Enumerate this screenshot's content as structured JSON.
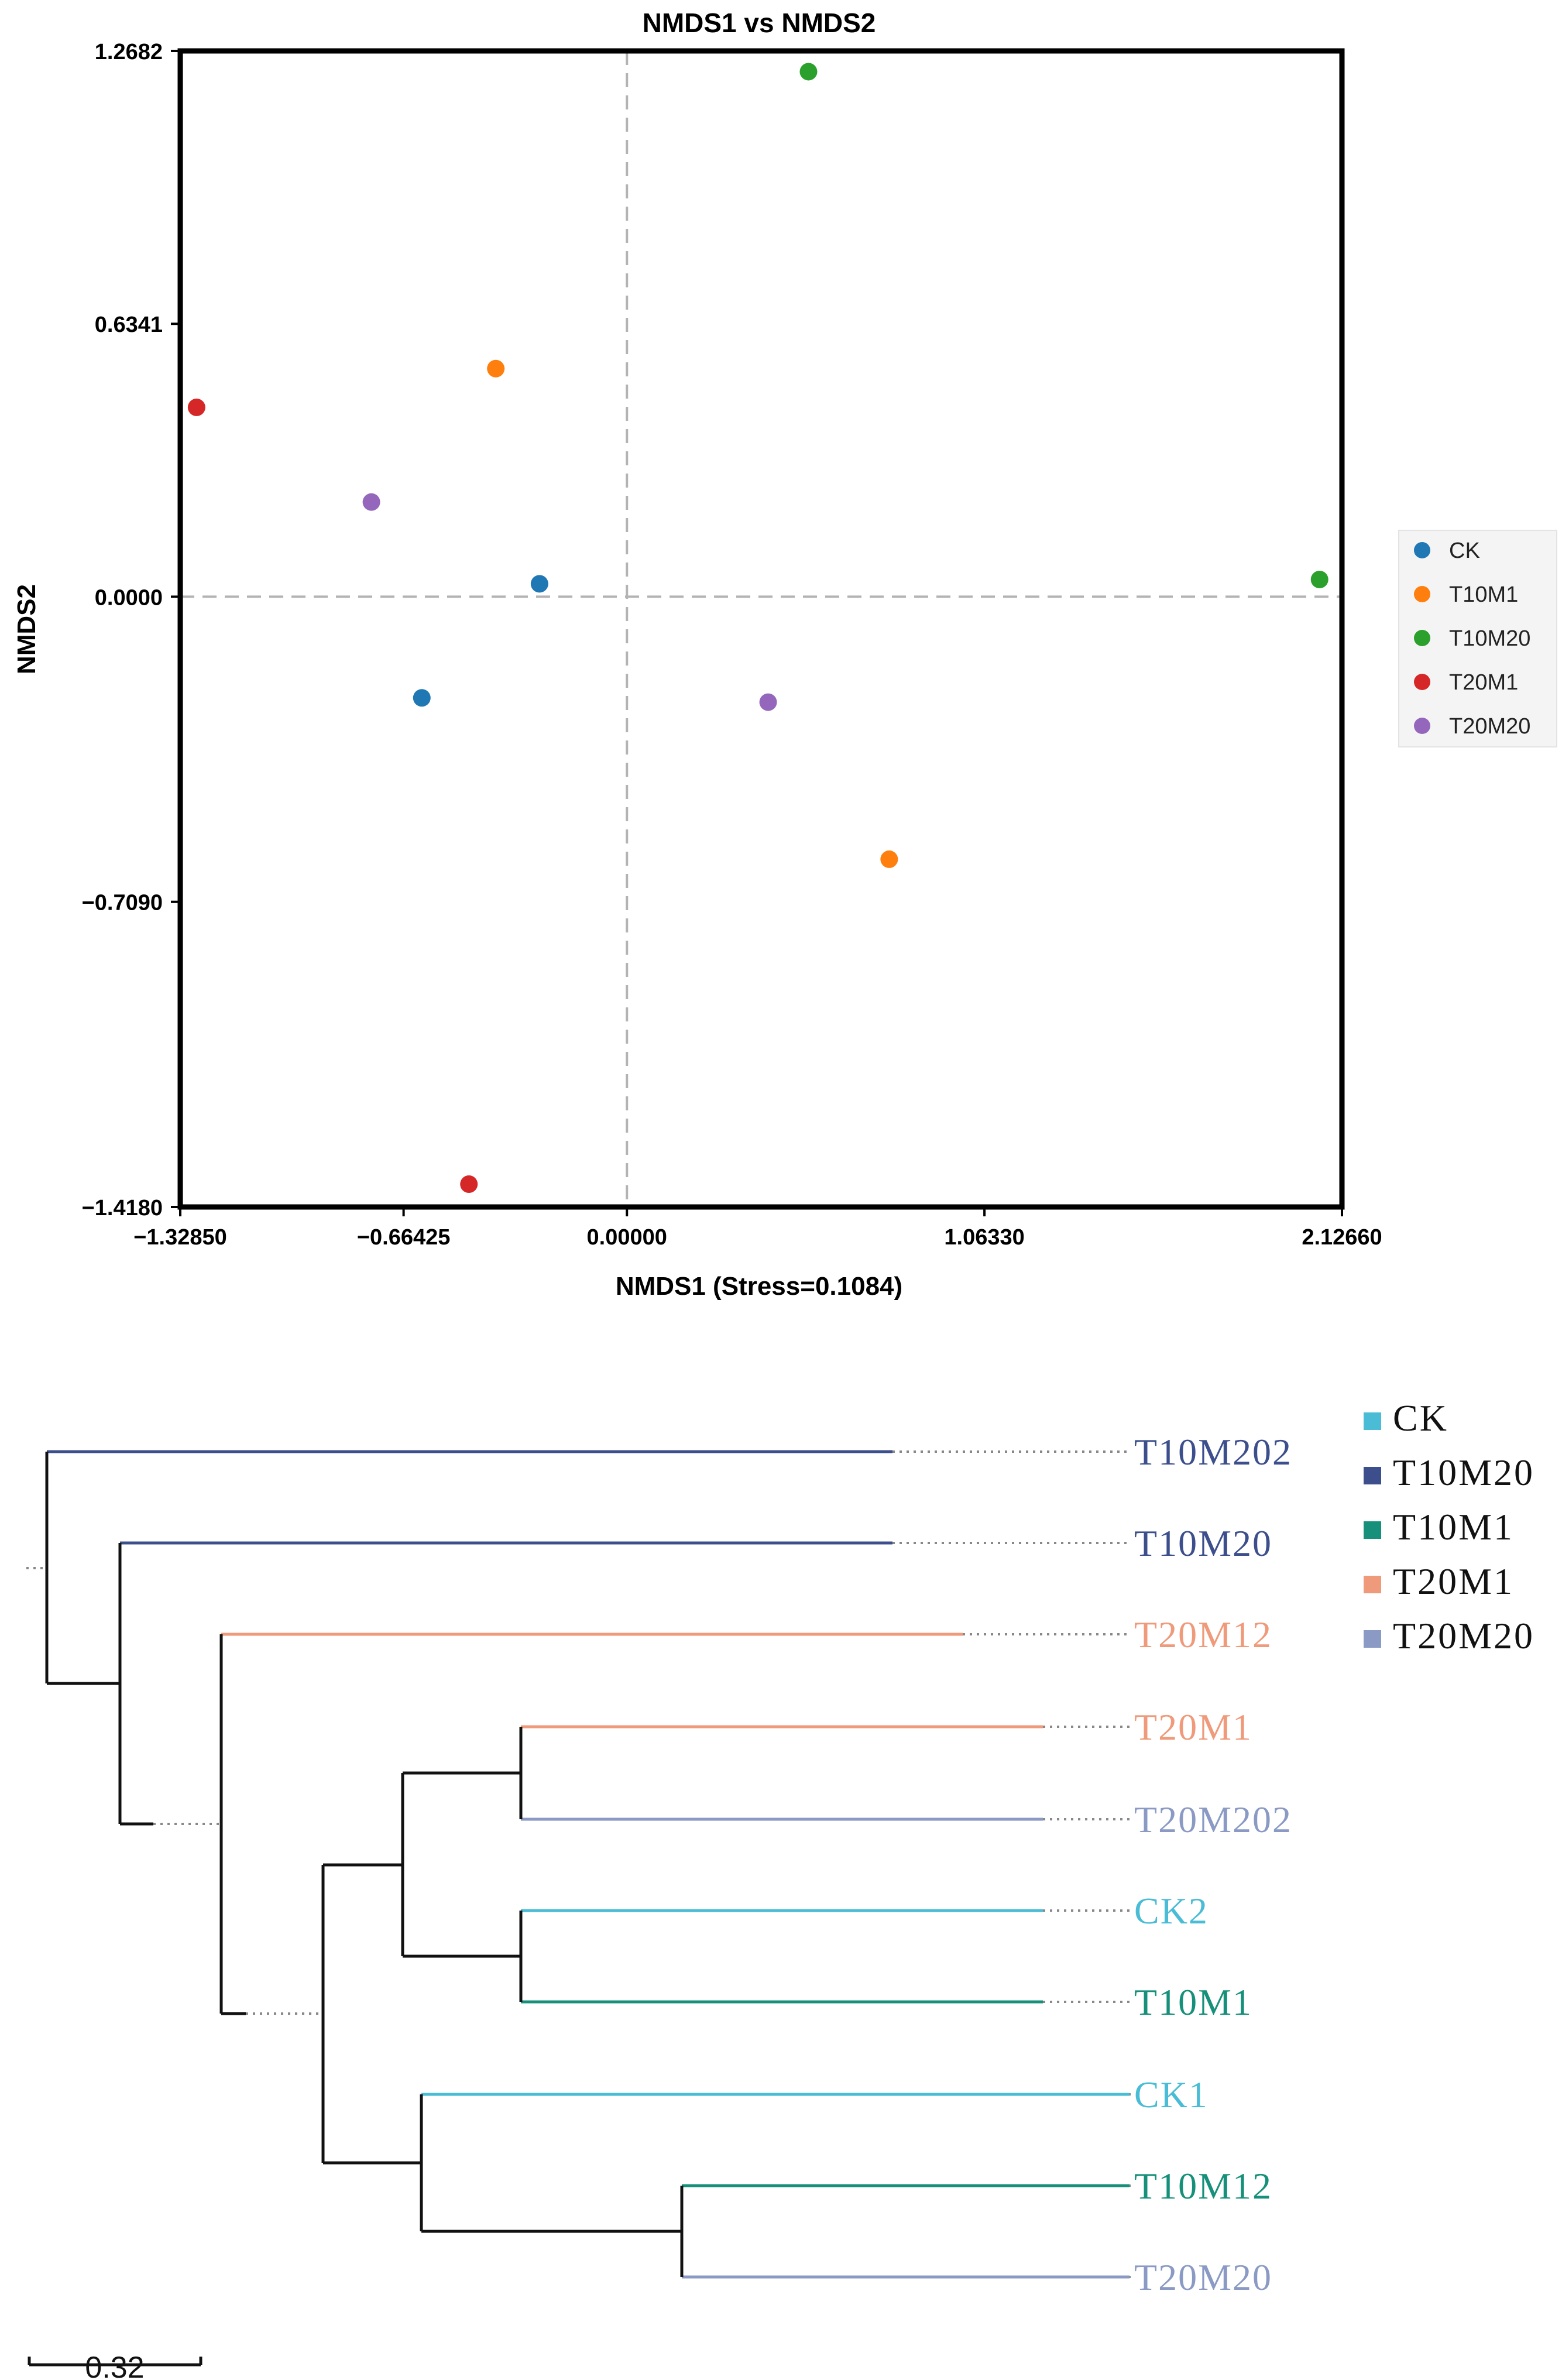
{
  "chart_data": [
    {
      "type": "scatter",
      "title": "NMDS1 vs NMDS2",
      "xlabel": "NMDS1 (Stress=0.1084)",
      "ylabel": "NMDS2",
      "xlim": [
        -1.3285,
        2.1266
      ],
      "ylim": [
        -1.418,
        1.2682
      ],
      "xticks": [
        -1.3285,
        -0.66425,
        0.0,
        1.0633,
        2.1266
      ],
      "xtick_labels": [
        "−1.32850",
        "−0.66425",
        "0.00000",
        "1.06330",
        "2.12660"
      ],
      "yticks": [
        1.2682,
        0.6341,
        0.0,
        -0.709,
        -1.418
      ],
      "ytick_labels": [
        "1.2682",
        "0.6341",
        "0.0000",
        "−0.7090",
        "−1.4180"
      ],
      "reference_lines": {
        "x": 0,
        "y": 0,
        "style": "dashed"
      },
      "legend_position": "right",
      "series": [
        {
          "name": "CK",
          "color": "#1f77b4",
          "points": [
            [
              -0.26,
              0.03
            ],
            [
              -0.61,
              -0.235
            ]
          ]
        },
        {
          "name": "T10M1",
          "color": "#ff7f0e",
          "points": [
            [
              -0.39,
              0.53
            ],
            [
              0.78,
              -0.61
            ]
          ]
        },
        {
          "name": "T10M20",
          "color": "#2ca02c",
          "points": [
            [
              0.54,
              1.22
            ],
            [
              2.06,
              0.04
            ]
          ]
        },
        {
          "name": "T20M1",
          "color": "#d62728",
          "points": [
            [
              -1.28,
              0.44
            ],
            [
              -0.47,
              -1.365
            ]
          ]
        },
        {
          "name": "T20M20",
          "color": "#9467bd",
          "points": [
            [
              -0.76,
              0.22
            ],
            [
              0.42,
              -0.245
            ]
          ]
        }
      ]
    },
    {
      "type": "dendrogram",
      "scale_label": "0.32",
      "legend_position": "top-right",
      "legend": [
        {
          "name": "CK",
          "color": "#4bbcd6"
        },
        {
          "name": "T10M20",
          "color": "#3c4f8c"
        },
        {
          "name": "T10M1",
          "color": "#16907a"
        },
        {
          "name": "T20M1",
          "color": "#ef9a7a"
        },
        {
          "name": "T20M20",
          "color": "#8a9ac4"
        }
      ],
      "leaves": [
        {
          "label": "T10M202",
          "group": "T10M20",
          "color": "#3c4f8c"
        },
        {
          "label": "T10M20",
          "group": "T10M20",
          "color": "#3c4f8c"
        },
        {
          "label": "T20M12",
          "group": "T20M1",
          "color": "#ef9a7a"
        },
        {
          "label": "T20M1",
          "group": "T20M1",
          "color": "#ef9a7a"
        },
        {
          "label": "T20M202",
          "group": "T20M20",
          "color": "#8a9ac4"
        },
        {
          "label": "CK2",
          "group": "CK",
          "color": "#4bbcd6"
        },
        {
          "label": "T10M1",
          "group": "T10M1",
          "color": "#16907a"
        },
        {
          "label": "CK1",
          "group": "CK",
          "color": "#4bbcd6"
        },
        {
          "label": "T10M12",
          "group": "T10M1",
          "color": "#16907a"
        },
        {
          "label": "T20M20",
          "group": "T20M20",
          "color": "#8a9ac4"
        }
      ]
    }
  ]
}
